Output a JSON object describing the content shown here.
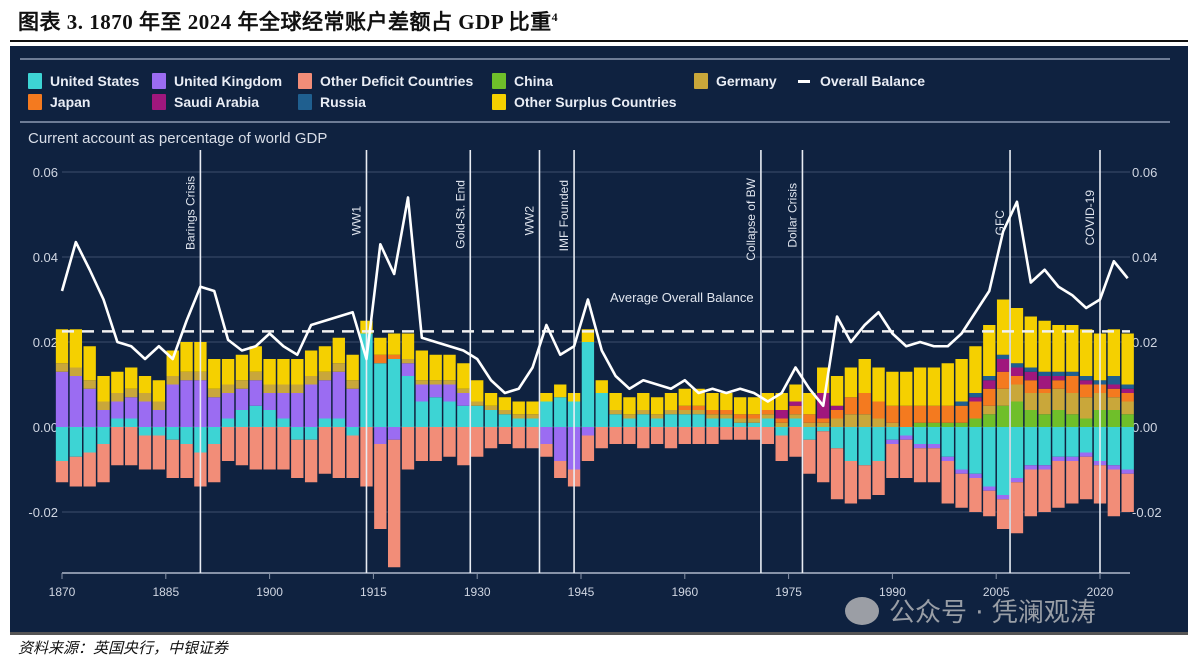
{
  "header": {
    "title": "图表 3. 1870 年至 2024 年全球经常账户差额占 GDP 比重",
    "title_sup": "4"
  },
  "footer": {
    "source": "资料来源：英国央行，中银证券"
  },
  "watermark": {
    "text": "公众号 · 凭澜观涛"
  },
  "chart_data": {
    "type": "bar",
    "stacked": true,
    "subtitle": "Current account as percentage of world GDP",
    "x": [
      1870,
      1872,
      1874,
      1876,
      1878,
      1880,
      1882,
      1884,
      1886,
      1888,
      1890,
      1892,
      1894,
      1896,
      1898,
      1900,
      1902,
      1904,
      1906,
      1908,
      1910,
      1912,
      1914,
      1916,
      1918,
      1920,
      1922,
      1924,
      1926,
      1928,
      1930,
      1932,
      1934,
      1936,
      1938,
      1940,
      1942,
      1944,
      1946,
      1948,
      1950,
      1952,
      1954,
      1956,
      1958,
      1960,
      1962,
      1964,
      1966,
      1968,
      1970,
      1972,
      1974,
      1976,
      1978,
      1980,
      1982,
      1984,
      1986,
      1988,
      1990,
      1992,
      1994,
      1996,
      1998,
      2000,
      2002,
      2004,
      2006,
      2008,
      2010,
      2012,
      2014,
      2016,
      2018,
      2020,
      2022,
      2024
    ],
    "xticks": [
      "1870",
      "1885",
      "1900",
      "1915",
      "1930",
      "1945",
      "1960",
      "1975",
      "1990",
      "2005",
      "2020"
    ],
    "yticks": [
      "0.06",
      "0.04",
      "0.02",
      "0.00",
      "-0.02"
    ],
    "ylim": [
      -0.033,
      0.06
    ],
    "grid": true,
    "legend_position": "top",
    "series": [
      {
        "name": "United States",
        "color": "#3dd4d4",
        "values": [
          -0.008,
          -0.007,
          -0.006,
          -0.004,
          0.002,
          0.002,
          -0.002,
          -0.002,
          -0.003,
          -0.004,
          -0.006,
          -0.004,
          0.002,
          0.004,
          0.005,
          0.004,
          0.002,
          -0.003,
          -0.003,
          0.002,
          0.002,
          -0.002,
          0.022,
          0.015,
          0.016,
          0.012,
          0.006,
          0.007,
          0.006,
          0.005,
          0.005,
          0.004,
          0.003,
          0.002,
          0.002,
          0.006,
          0.007,
          0.006,
          0.02,
          0.008,
          0.003,
          0.002,
          0.003,
          0.002,
          0.003,
          0.003,
          0.003,
          0.002,
          0.002,
          0.001,
          0.001,
          0.002,
          -0.002,
          0.002,
          -0.003,
          -0.001,
          -0.005,
          -0.008,
          -0.009,
          -0.008,
          -0.003,
          -0.002,
          -0.004,
          -0.004,
          -0.007,
          -0.01,
          -0.011,
          -0.014,
          -0.016,
          -0.012,
          -0.009,
          -0.009,
          -0.007,
          -0.007,
          -0.006,
          -0.008,
          -0.009,
          -0.01
        ]
      },
      {
        "name": "United Kingdom",
        "color": "#9b6cf2",
        "values": [
          0.013,
          0.012,
          0.009,
          0.004,
          0.004,
          0.005,
          0.006,
          0.004,
          0.01,
          0.011,
          0.011,
          0.007,
          0.006,
          0.005,
          0.006,
          0.004,
          0.006,
          0.008,
          0.01,
          0.009,
          0.011,
          0.009,
          0,
          -0.004,
          -0.003,
          0.003,
          0.004,
          0.003,
          0.004,
          0.003,
          0,
          0,
          0,
          0,
          0,
          -0.004,
          -0.008,
          -0.01,
          -0.002,
          0,
          0,
          0,
          0,
          0,
          0,
          0,
          0,
          0,
          0,
          0,
          0,
          0,
          0,
          0,
          0,
          0,
          0,
          0,
          0,
          0,
          -0.001,
          -0.001,
          -0.001,
          -0.001,
          -0.001,
          -0.001,
          -0.001,
          -0.001,
          -0.001,
          -0.001,
          -0.001,
          -0.001,
          -0.001,
          -0.001,
          -0.001,
          -0.001,
          -0.001,
          -0.001
        ]
      },
      {
        "name": "Other Deficit Countries",
        "color": "#f28d78",
        "values": [
          -0.005,
          -0.007,
          -0.008,
          -0.009,
          -0.009,
          -0.009,
          -0.008,
          -0.008,
          -0.009,
          -0.008,
          -0.008,
          -0.009,
          -0.008,
          -0.009,
          -0.01,
          -0.01,
          -0.01,
          -0.009,
          -0.01,
          -0.011,
          -0.012,
          -0.01,
          -0.014,
          -0.02,
          -0.03,
          -0.01,
          -0.008,
          -0.008,
          -0.007,
          -0.009,
          -0.007,
          -0.005,
          -0.004,
          -0.005,
          -0.005,
          -0.003,
          -0.004,
          -0.004,
          -0.006,
          -0.005,
          -0.004,
          -0.004,
          -0.005,
          -0.004,
          -0.005,
          -0.004,
          -0.004,
          -0.004,
          -0.003,
          -0.003,
          -0.003,
          -0.004,
          -0.006,
          -0.007,
          -0.008,
          -0.012,
          -0.012,
          -0.01,
          -0.008,
          -0.008,
          -0.008,
          -0.009,
          -0.008,
          -0.008,
          -0.01,
          -0.008,
          -0.008,
          -0.006,
          -0.007,
          -0.012,
          -0.011,
          -0.01,
          -0.011,
          -0.01,
          -0.01,
          -0.009,
          -0.011,
          -0.009
        ]
      },
      {
        "name": "China",
        "color": "#6fbf2a",
        "values": [
          0,
          0,
          0,
          0,
          0,
          0,
          0,
          0,
          0,
          0,
          0,
          0,
          0,
          0,
          0,
          0,
          0,
          0,
          0,
          0,
          0,
          0,
          0,
          0,
          0,
          0,
          0,
          0,
          0,
          0,
          0,
          0,
          0,
          0,
          0,
          0,
          0,
          0,
          0,
          0,
          0,
          0,
          0,
          0,
          0,
          0,
          0,
          0,
          0,
          0,
          0,
          0,
          0,
          0,
          0,
          0,
          0,
          0,
          0,
          0,
          0,
          0,
          0.001,
          0.001,
          0.001,
          0.001,
          0.002,
          0.003,
          0.005,
          0.006,
          0.004,
          0.003,
          0.004,
          0.003,
          0.002,
          0.004,
          0.004,
          0.003
        ]
      },
      {
        "name": "Germany",
        "color": "#c9a73a",
        "values": [
          0.002,
          0.002,
          0.002,
          0.002,
          0.002,
          0.002,
          0.002,
          0.002,
          0.002,
          0.002,
          0.002,
          0.002,
          0.002,
          0.002,
          0.002,
          0.002,
          0.002,
          0.002,
          0.002,
          0.002,
          0.002,
          0.002,
          0,
          0,
          0,
          0.001,
          0.001,
          0.001,
          0.001,
          0.001,
          0.001,
          0.001,
          0.001,
          0.001,
          0.001,
          0,
          0,
          0,
          0,
          0,
          0.001,
          0.001,
          0.001,
          0.001,
          0.001,
          0.001,
          0.001,
          0.001,
          0.001,
          0.001,
          0.001,
          0.001,
          0.001,
          0.001,
          0.001,
          0.001,
          0.002,
          0.003,
          0.003,
          0.002,
          0.001,
          0,
          0,
          0,
          0,
          0,
          0,
          0.002,
          0.004,
          0.004,
          0.004,
          0.005,
          0.005,
          0.005,
          0.005,
          0.004,
          0.003,
          0.003
        ]
      },
      {
        "name": "Japan",
        "color": "#f47a1f",
        "values": [
          0,
          0,
          0,
          0,
          0,
          0,
          0,
          0,
          0,
          0,
          0,
          0,
          0,
          0,
          0,
          0,
          0,
          0,
          0,
          0,
          0,
          0,
          0,
          0.002,
          0.001,
          0,
          0,
          0,
          0,
          0,
          0,
          0,
          0,
          0,
          0,
          0,
          0,
          0,
          0,
          0,
          0,
          0,
          0,
          0,
          0,
          0.001,
          0.001,
          0.001,
          0.001,
          0.001,
          0.001,
          0.001,
          0.001,
          0.002,
          0.002,
          0.001,
          0.002,
          0.004,
          0.005,
          0.004,
          0.004,
          0.005,
          0.004,
          0.004,
          0.004,
          0.004,
          0.004,
          0.004,
          0.004,
          0.002,
          0.003,
          0.001,
          0.002,
          0.004,
          0.003,
          0.002,
          0.002,
          0.002
        ]
      },
      {
        "name": "Saudi Arabia",
        "color": "#a0177d",
        "values": [
          0,
          0,
          0,
          0,
          0,
          0,
          0,
          0,
          0,
          0,
          0,
          0,
          0,
          0,
          0,
          0,
          0,
          0,
          0,
          0,
          0,
          0,
          0,
          0,
          0,
          0,
          0,
          0,
          0,
          0,
          0,
          0,
          0,
          0,
          0,
          0,
          0,
          0,
          0,
          0,
          0,
          0,
          0,
          0,
          0,
          0,
          0,
          0,
          0,
          0,
          0,
          0,
          0.002,
          0.001,
          0,
          0.006,
          0.001,
          0,
          0,
          0,
          0,
          0,
          0,
          0,
          0,
          0,
          0.001,
          0.002,
          0.003,
          0.002,
          0.002,
          0.003,
          0.001,
          0,
          0.001,
          0,
          0.001,
          0.001
        ]
      },
      {
        "name": "Russia",
        "color": "#1f5f8f",
        "values": [
          0,
          0,
          0,
          0,
          0,
          0,
          0,
          0,
          0,
          0,
          0,
          0,
          0,
          0,
          0,
          0,
          0,
          0,
          0,
          0,
          0,
          0,
          0,
          0,
          0,
          0,
          0,
          0,
          0,
          0,
          0,
          0,
          0,
          0,
          0,
          0,
          0,
          0,
          0,
          0,
          0,
          0,
          0,
          0,
          0,
          0,
          0,
          0,
          0,
          0,
          0,
          0,
          0,
          0,
          0,
          0,
          0,
          0,
          0,
          0,
          0,
          0,
          0,
          0,
          0,
          0.001,
          0.001,
          0.001,
          0.001,
          0.001,
          0.001,
          0.001,
          0.001,
          0.001,
          0.001,
          0.001,
          0.002,
          0.001
        ]
      },
      {
        "name": "Other Surplus Countries",
        "color": "#f5d000",
        "values": [
          0.008,
          0.009,
          0.008,
          0.006,
          0.005,
          0.005,
          0.004,
          0.005,
          0.006,
          0.007,
          0.007,
          0.007,
          0.006,
          0.006,
          0.006,
          0.006,
          0.006,
          0.006,
          0.006,
          0.006,
          0.006,
          0.006,
          0.003,
          0.004,
          0.005,
          0.006,
          0.007,
          0.006,
          0.006,
          0.006,
          0.005,
          0.003,
          0.003,
          0.003,
          0.003,
          0.002,
          0.003,
          0.002,
          0.003,
          0.003,
          0.004,
          0.004,
          0.004,
          0.004,
          0.004,
          0.004,
          0.004,
          0.004,
          0.004,
          0.004,
          0.004,
          0.004,
          0.004,
          0.004,
          0.005,
          0.006,
          0.007,
          0.007,
          0.008,
          0.008,
          0.008,
          0.008,
          0.009,
          0.009,
          0.01,
          0.01,
          0.011,
          0.012,
          0.013,
          0.013,
          0.012,
          0.012,
          0.011,
          0.011,
          0.011,
          0.011,
          0.011,
          0.012
        ]
      }
    ],
    "overall_balance": {
      "name": "Overall Balance",
      "color": "#ffffff",
      "values": [
        0.032,
        0.0435,
        0.037,
        0.03,
        0.02,
        0.019,
        0.016,
        0.019,
        0.016,
        0.025,
        0.033,
        0.032,
        0.0205,
        0.018,
        0.019,
        0.022,
        0.019,
        0.017,
        0.024,
        0.025,
        0.026,
        0.027,
        0.016,
        0.043,
        0.036,
        0.054,
        0.021,
        0.02,
        0.019,
        0.018,
        0.016,
        0.011,
        0.008,
        0.009,
        0.014,
        0.024,
        0.017,
        0.019,
        0.03,
        0.018,
        0.012,
        0.009,
        0.011,
        0.01,
        0.009,
        0.011,
        0.008,
        0.009,
        0.008,
        0.009,
        0.008,
        0.006,
        0.008,
        0.014,
        0.009,
        0.005,
        0.026,
        0.02,
        0.024,
        0.027,
        0.022,
        0.019,
        0.02,
        0.019,
        0.019,
        0.022,
        0.027,
        0.032,
        0.046,
        0.053,
        0.034,
        0.037,
        0.033,
        0.031,
        0.028,
        0.03,
        0.039,
        0.035
      ]
    },
    "average_line": {
      "label": "Average Overall Balance",
      "value": 0.0225
    },
    "events": [
      {
        "label": "Barings Crisis",
        "year": 1890
      },
      {
        "label": "WW1",
        "year": 1914
      },
      {
        "label": "Gold-St. End",
        "year": 1929
      },
      {
        "label": "WW2",
        "year": 1939
      },
      {
        "label": "IMF Founded",
        "year": 1944
      },
      {
        "label": "Collapse of BW",
        "year": 1971
      },
      {
        "label": "Dollar Crisis",
        "year": 1977
      },
      {
        "label": "GFC",
        "year": 2007
      },
      {
        "label": "COVID-19",
        "year": 2020
      }
    ]
  }
}
